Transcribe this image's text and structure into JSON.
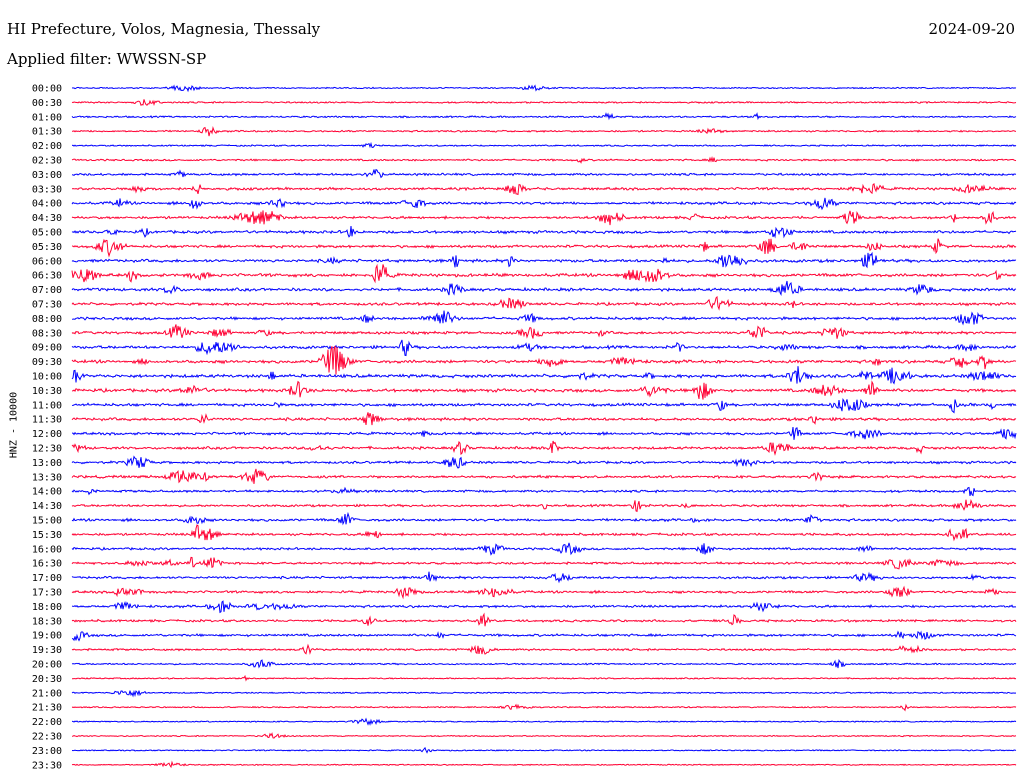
{
  "header": {
    "title": "HI Prefecture, Volos, Magnesia, Thessaly",
    "date": "2024-09-20",
    "filter": "Applied filter: WWSSN-SP"
  },
  "chart_data": {
    "type": "line",
    "title": "HI Prefecture, Volos, Magnesia, Thessaly",
    "subtitle": "Applied filter: WWSSN-SP",
    "ylabel": "HNZ - 10000",
    "xlabel": "",
    "grid": false,
    "legend": "none",
    "colors": [
      "#0000ff",
      "#ff0033"
    ],
    "row_activity": [
      0.3,
      0.5,
      0.6,
      0.6,
      0.4,
      0.7,
      1.0,
      1.2,
      1.3,
      1.2,
      1.4,
      1.3,
      1.5,
      1.6,
      1.5,
      1.3,
      1.4,
      1.3,
      1.5,
      1.6,
      1.7,
      1.6,
      1.4,
      1.4,
      1.2,
      1.2,
      1.1,
      1.2,
      1.0,
      1.0,
      1.2,
      1.1,
      1.0,
      1.0,
      1.1,
      1.1,
      1.1,
      1.0,
      1.1,
      0.8,
      0.5,
      0.3,
      0.3,
      0.3,
      0.2,
      0.2,
      0.2,
      0.2
    ],
    "rows": [
      "00:00",
      "00:30",
      "01:00",
      "01:30",
      "02:00",
      "02:30",
      "03:00",
      "03:30",
      "04:00",
      "04:30",
      "05:00",
      "05:30",
      "06:00",
      "06:30",
      "07:00",
      "07:30",
      "08:00",
      "08:30",
      "09:00",
      "09:30",
      "10:00",
      "10:30",
      "11:00",
      "11:30",
      "12:00",
      "12:30",
      "13:00",
      "13:30",
      "14:00",
      "14:30",
      "15:00",
      "15:30",
      "16:00",
      "16:30",
      "17:00",
      "17:30",
      "18:00",
      "18:30",
      "19:00",
      "19:30",
      "20:00",
      "20:30",
      "21:00",
      "21:30",
      "22:00",
      "22:30",
      "23:00",
      "23:30"
    ]
  }
}
